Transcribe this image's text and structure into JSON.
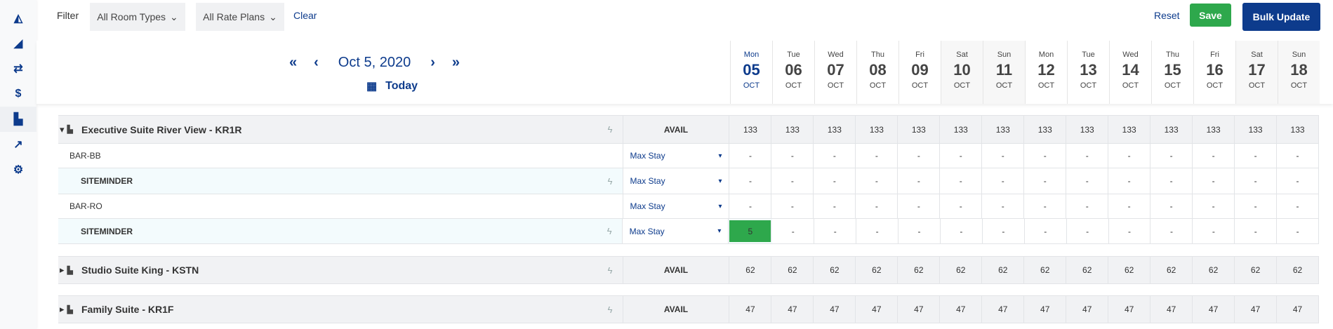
{
  "sidebar": {
    "items": [
      {
        "icon": "area-chart-icon"
      },
      {
        "icon": "pen-gear-icon"
      },
      {
        "icon": "swap-icon"
      },
      {
        "icon": "dollar-icon"
      },
      {
        "icon": "bed-icon",
        "active": true
      },
      {
        "icon": "trend-icon"
      },
      {
        "icon": "gear-icon"
      }
    ]
  },
  "filter": {
    "label": "Filter",
    "room_types": "All Room Types",
    "rate_plans": "All Rate Plans",
    "clear": "Clear"
  },
  "actions": {
    "reset": "Reset",
    "save": "Save",
    "bulk_update": "Bulk Update",
    "save_color": "#2ea84c",
    "bulk_color": "#0d3b8c"
  },
  "date_nav": {
    "current": "Oct 5, 2020",
    "today": "Today",
    "first": "«",
    "prev": "‹",
    "next": "›",
    "last": "»"
  },
  "days": [
    {
      "dow": "Mon",
      "day": "05",
      "mon": "OCT",
      "current": true
    },
    {
      "dow": "Tue",
      "day": "06",
      "mon": "OCT"
    },
    {
      "dow": "Wed",
      "day": "07",
      "mon": "OCT"
    },
    {
      "dow": "Thu",
      "day": "08",
      "mon": "OCT"
    },
    {
      "dow": "Fri",
      "day": "09",
      "mon": "OCT"
    },
    {
      "dow": "Sat",
      "day": "10",
      "mon": "OCT",
      "weekend": true
    },
    {
      "dow": "Sun",
      "day": "11",
      "mon": "OCT",
      "weekend": true
    },
    {
      "dow": "Mon",
      "day": "12",
      "mon": "OCT"
    },
    {
      "dow": "Tue",
      "day": "13",
      "mon": "OCT"
    },
    {
      "dow": "Wed",
      "day": "14",
      "mon": "OCT"
    },
    {
      "dow": "Thu",
      "day": "15",
      "mon": "OCT"
    },
    {
      "dow": "Fri",
      "day": "16",
      "mon": "OCT"
    },
    {
      "dow": "Sat",
      "day": "17",
      "mon": "OCT",
      "weekend": true
    },
    {
      "dow": "Sun",
      "day": "18",
      "mon": "OCT",
      "weekend": true
    }
  ],
  "rows": [
    {
      "kind": "room",
      "expanded": true,
      "name": "Executive Suite River View - KR1R",
      "type": "AVAIL",
      "values": [
        "133",
        "133",
        "133",
        "133",
        "133",
        "133",
        "133",
        "133",
        "133",
        "133",
        "133",
        "133",
        "133",
        "133"
      ]
    },
    {
      "kind": "rate",
      "name": "BAR-BB",
      "type": "Max Stay",
      "values": [
        "-",
        "-",
        "-",
        "-",
        "-",
        "-",
        "-",
        "-",
        "-",
        "-",
        "-",
        "-",
        "-",
        "-"
      ]
    },
    {
      "kind": "sub",
      "name": "SITEMINDER",
      "type": "Max Stay",
      "values": [
        "-",
        "-",
        "-",
        "-",
        "-",
        "-",
        "-",
        "-",
        "-",
        "-",
        "-",
        "-",
        "-",
        "-"
      ]
    },
    {
      "kind": "rate",
      "name": "BAR-RO",
      "type": "Max Stay",
      "values": [
        "-",
        "-",
        "-",
        "-",
        "-",
        "-",
        "-",
        "-",
        "-",
        "-",
        "-",
        "-",
        "-",
        "-"
      ]
    },
    {
      "kind": "sub",
      "name": "SITEMINDER",
      "type": "Max Stay",
      "values": [
        "5",
        "-",
        "-",
        "-",
        "-",
        "-",
        "-",
        "-",
        "-",
        "-",
        "-",
        "-",
        "-",
        "-"
      ],
      "highlight": [
        0
      ]
    },
    {
      "kind": "room",
      "expanded": false,
      "name": "Studio Suite King - KSTN",
      "type": "AVAIL",
      "values": [
        "62",
        "62",
        "62",
        "62",
        "62",
        "62",
        "62",
        "62",
        "62",
        "62",
        "62",
        "62",
        "62",
        "62"
      ]
    },
    {
      "kind": "room",
      "expanded": false,
      "name": "Family Suite - KR1F",
      "type": "AVAIL",
      "values": [
        "47",
        "47",
        "47",
        "47",
        "47",
        "47",
        "47",
        "47",
        "47",
        "47",
        "47",
        "47",
        "47",
        "47"
      ]
    }
  ],
  "highlight_color": "#2ea84c"
}
